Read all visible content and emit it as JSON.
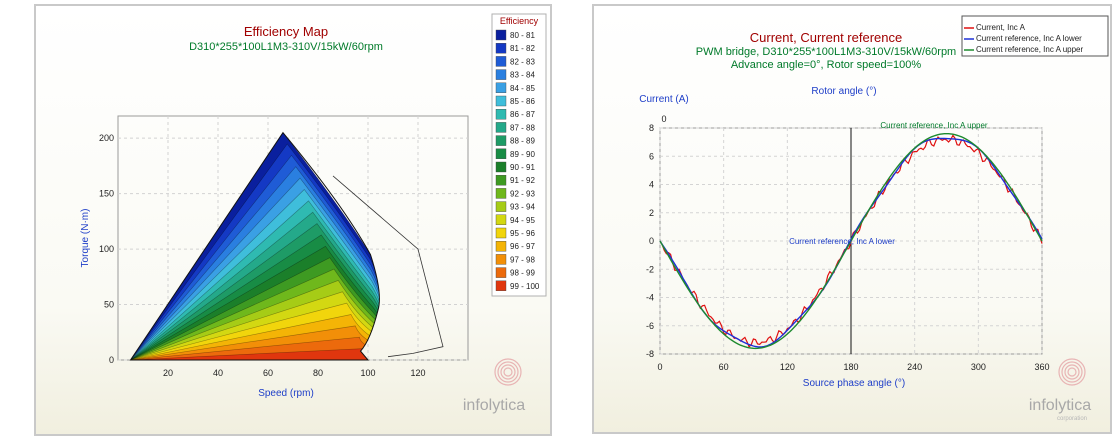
{
  "chart_data": [
    {
      "type": "heatmap",
      "title": "Efficiency Map",
      "subtitle": "D310*255*100L1M3-310V/15kW/60rpm",
      "xlabel": "Speed (rpm)",
      "ylabel": "Torque (N·m)",
      "xlim": [
        0,
        140
      ],
      "ylim": [
        0,
        220
      ],
      "xticks": [
        20,
        40,
        60,
        80,
        100,
        120
      ],
      "yticks": [
        0,
        50,
        100,
        150,
        200
      ],
      "legend_title": "Efficiency",
      "legend_placement": "right",
      "legend_entries": [
        "80 - 81",
        "81 - 82",
        "82 - 83",
        "83 - 84",
        "84 - 85",
        "85 - 86",
        "86 - 87",
        "87 - 88",
        "88 - 89",
        "89 - 90",
        "90 - 91",
        "91 - 92",
        "92 - 93",
        "93 - 94",
        "94 - 95",
        "95 - 96",
        "96 - 97",
        "97 - 98",
        "98 - 99",
        "99 - 100"
      ],
      "legend_colors": [
        "#0a1f9e",
        "#1439c4",
        "#1f5cd6",
        "#2a7fe0",
        "#3aa0e4",
        "#3fbedb",
        "#2fbab1",
        "#24a98a",
        "#1e9b66",
        "#188c45",
        "#1b7f2a",
        "#3e9a22",
        "#6fb81c",
        "#a6cc16",
        "#d3d812",
        "#f1d50c",
        "#f4b406",
        "#f28f08",
        "#ec6a0c",
        "#e0360e"
      ],
      "envelope": [
        [
          5,
          0
        ],
        [
          66,
          205
        ],
        [
          86,
          166
        ],
        [
          101,
          95
        ],
        [
          104,
          45
        ],
        [
          97,
          8
        ],
        [
          100,
          0
        ]
      ],
      "grid": true
    },
    {
      "type": "line",
      "title": "Current, Current reference",
      "subtitle_lines": [
        "PWM bridge, D310*255*100L1M3-310V/15kW/60rpm",
        "Advance angle=0°, Rotor speed=100%"
      ],
      "xlabel": "Source phase angle (°)",
      "ylabel": "Current (A)",
      "top_axis_label": "Rotor angle (°)",
      "top_axis_tick": "0",
      "xlim": [
        0,
        360
      ],
      "ylim": [
        -8,
        8
      ],
      "xticks": [
        0,
        60,
        120,
        180,
        240,
        300,
        360
      ],
      "yticks": [
        8,
        6,
        4,
        2,
        0,
        -2,
        -4,
        -6,
        -8
      ],
      "vline_x": 180,
      "grid": true,
      "legend_placement": "top-right",
      "series": [
        {
          "name": "Current, Inc A",
          "color": "#e01010",
          "amplitude": 7.2
        },
        {
          "name": "Current reference, Inc A lower",
          "color": "#1e30d8",
          "amplitude": 7.4
        },
        {
          "name": "Current reference, Inc A upper",
          "color": "#1e8a2e",
          "amplitude": 7.6
        }
      ],
      "annotations": [
        {
          "text": "Current reference, Inc A upper",
          "x": 220,
          "y": 7.6
        },
        {
          "text": "Current reference, Inc A lower",
          "x": 130,
          "y": 0.2
        }
      ]
    }
  ],
  "branding": {
    "left_logo": "infolytica",
    "right_logo": "infolytica",
    "right_logo_sub": "corporation"
  }
}
